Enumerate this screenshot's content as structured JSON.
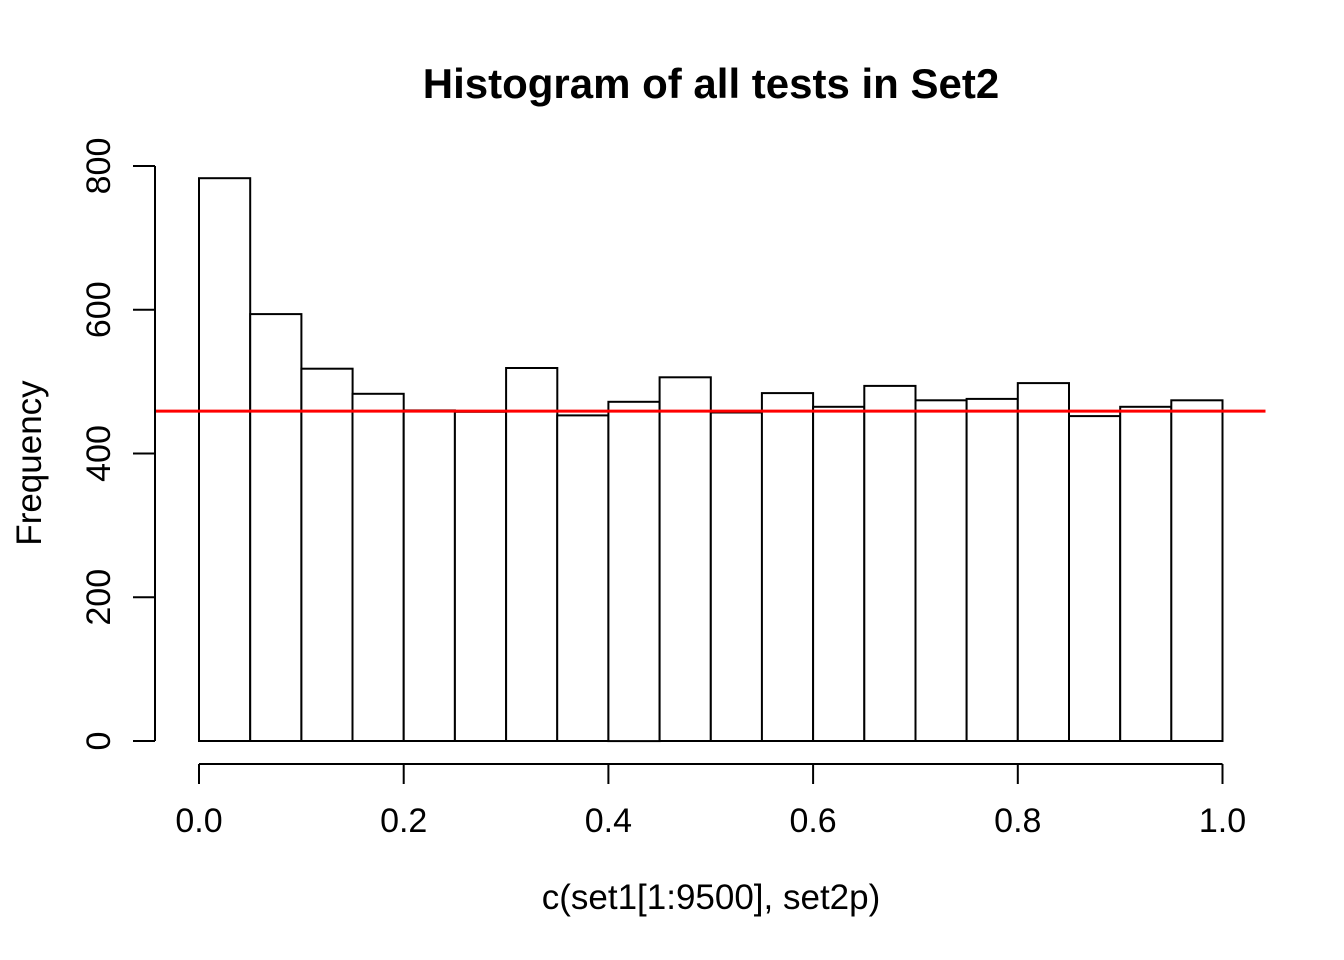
{
  "chart_data": {
    "type": "bar",
    "chart_kind": "histogram",
    "title": "Histogram of all tests in Set2",
    "xlabel": "c(set1[1:9500], set2p)",
    "ylabel": "Frequency",
    "bin_start": 0.0,
    "bin_width": 0.05,
    "counts": [
      783,
      594,
      518,
      483,
      460,
      458,
      519,
      453,
      472,
      506,
      457,
      484,
      465,
      494,
      474,
      476,
      498,
      452,
      465,
      474
    ],
    "x_ticks": [
      {
        "value": 0.0,
        "label": "0.0"
      },
      {
        "value": 0.2,
        "label": "0.2"
      },
      {
        "value": 0.4,
        "label": "0.4"
      },
      {
        "value": 0.6,
        "label": "0.6"
      },
      {
        "value": 0.8,
        "label": "0.8"
      },
      {
        "value": 1.0,
        "label": "1.0"
      }
    ],
    "y_ticks": [
      {
        "value": 0,
        "label": "0"
      },
      {
        "value": 200,
        "label": "200"
      },
      {
        "value": 400,
        "label": "400"
      },
      {
        "value": 600,
        "label": "600"
      },
      {
        "value": 800,
        "label": "800"
      }
    ],
    "xlim": [
      -0.042,
      1.042
    ],
    "ylim": [
      0,
      800
    ],
    "reference_line": {
      "value": 459,
      "color": "#FF0000"
    },
    "bar_fill": "#FFFFFF",
    "bar_stroke": "#000000",
    "axis_color": "#000000",
    "grid": false,
    "legend": false
  }
}
